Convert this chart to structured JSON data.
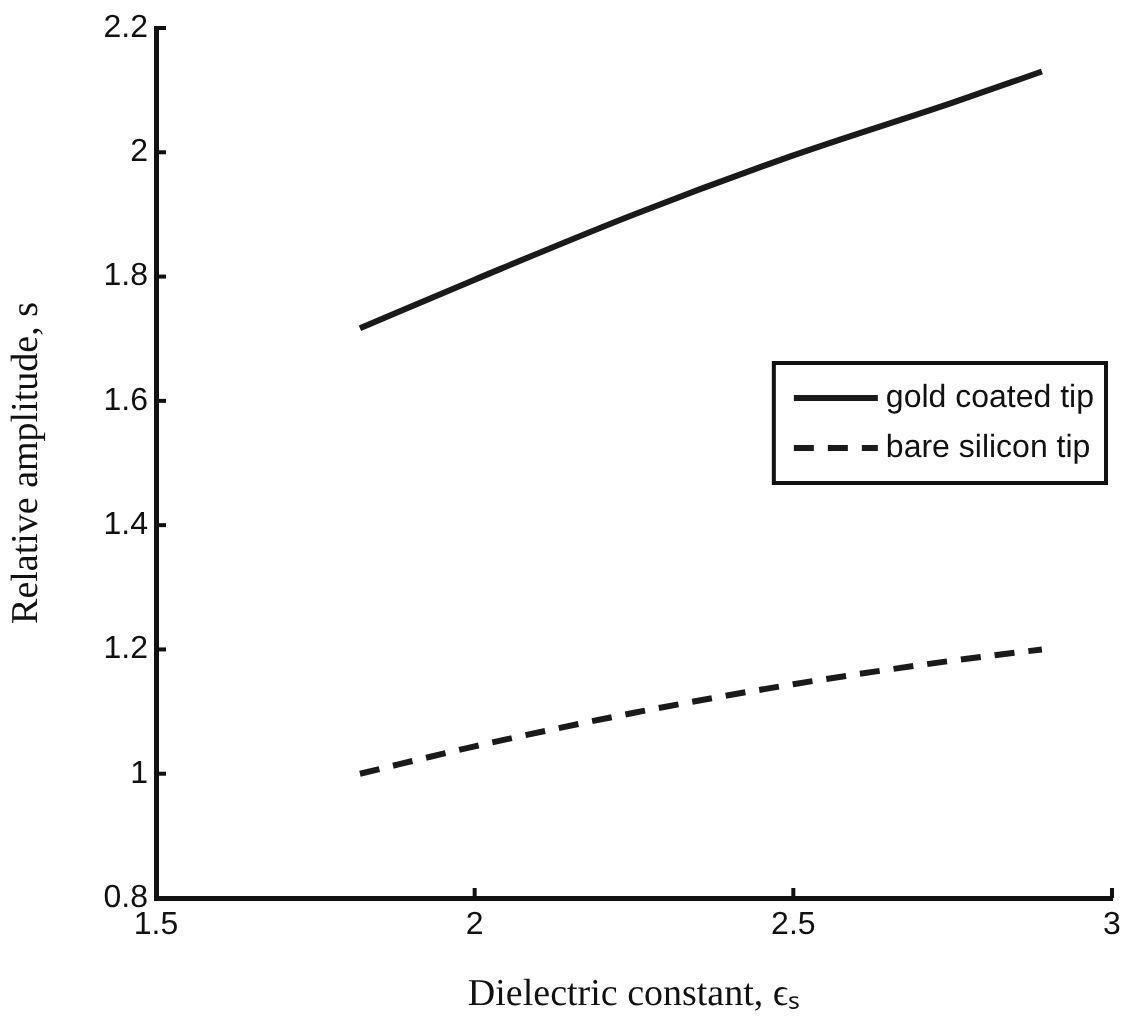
{
  "chart_data": {
    "type": "line",
    "xlabel": "Dielectric constant, ϵₛ",
    "ylabel": "Relative amplitude, s",
    "xlim": [
      1.5,
      3
    ],
    "xticks": [
      1.5,
      2,
      2.5,
      3
    ],
    "ylim": [
      0.8,
      2.2
    ],
    "yticks": [
      0.8,
      1,
      1.2,
      1.4,
      1.6,
      1.8,
      2,
      2.2
    ],
    "grid": false,
    "legend": "right",
    "marker": "none",
    "x": [
      1.82,
      2.0,
      2.25,
      2.5,
      2.75,
      2.89
    ],
    "series": [
      {
        "name": "gold coated tip",
        "color": "#1a1a1a",
        "line_style": "solid",
        "values": [
          1.717,
          1.795,
          1.9,
          1.995,
          2.08,
          2.13
        ]
      },
      {
        "name": "bare silicon tip",
        "color": "#1a1a1a",
        "line_style": "dashed",
        "values": [
          1.0,
          1.044,
          1.098,
          1.144,
          1.182,
          1.2
        ]
      }
    ]
  }
}
